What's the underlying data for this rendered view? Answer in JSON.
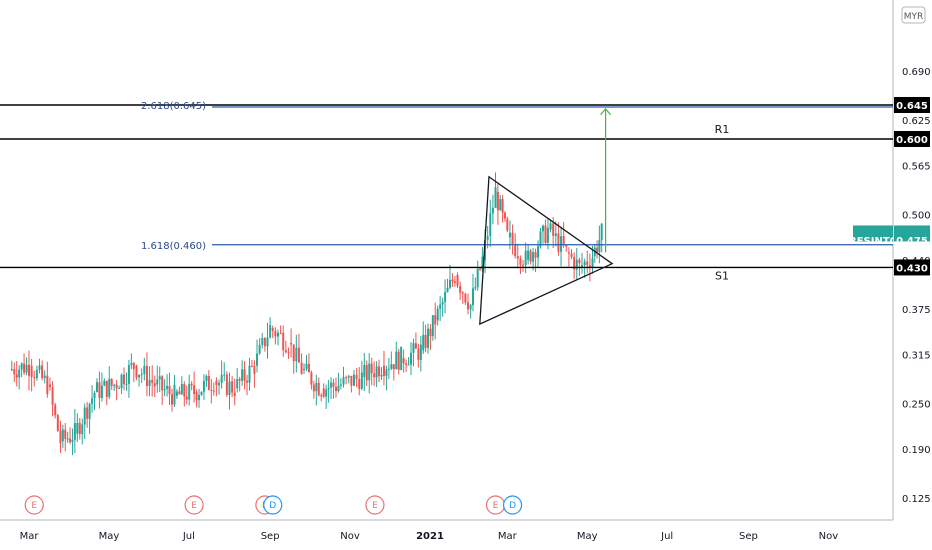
{
  "currency_label": "MYR",
  "symbol_label": "RESINTC",
  "price_tag": "0.475",
  "colors": {
    "up": "#26a69a",
    "down": "#ef5350",
    "fib_line": "#2a5caa",
    "sr_line": "#000000",
    "arrow": "#4caf50",
    "earnings": "#e57373",
    "dividend": "#2196f3",
    "symbol_tag": "#26a69a"
  },
  "chart_data": {
    "type": "candlestick",
    "y_axis": {
      "ticks": [
        "0.690",
        "0.625",
        "0.565",
        "0.500",
        "0.440",
        "0.375",
        "0.315",
        "0.250",
        "0.190",
        "0.125"
      ]
    },
    "x_axis": {
      "ticks": [
        "Mar",
        "May",
        "Jul",
        "Sep",
        "Nov",
        "2021",
        "Mar",
        "May",
        "Jul",
        "Sep",
        "Nov"
      ],
      "bold": [
        "2021"
      ]
    },
    "levels": [
      {
        "price": 0.645,
        "label": "0.645",
        "kind": "fib",
        "text": "2.618(0.645)"
      },
      {
        "price": 0.6,
        "label": "0.600",
        "kind": "resistance",
        "text": "R1"
      },
      {
        "price": 0.46,
        "kind": "fib",
        "text": "1.618(0.460)"
      },
      {
        "price": 0.43,
        "label": "0.430",
        "kind": "support",
        "text": "S1"
      }
    ],
    "events": [
      {
        "type": "E",
        "date": "2020-03-05"
      },
      {
        "type": "E",
        "date": "2020-07-05"
      },
      {
        "type": "E",
        "date": "2020-08-28"
      },
      {
        "type": "D",
        "date": "2020-09-03"
      },
      {
        "type": "E",
        "date": "2020-11-20"
      },
      {
        "type": "E",
        "date": "2021-02-20"
      },
      {
        "type": "D",
        "date": "2021-03-05"
      }
    ],
    "triangle_pattern": {
      "vertices": [
        {
          "date": "2021-02-15",
          "price": 0.55
        },
        {
          "date": "2021-02-08",
          "price": 0.355
        },
        {
          "date": "2021-05-20",
          "price": 0.435
        }
      ]
    },
    "target_arrow": {
      "date": "2021-05-15",
      "from": 0.45,
      "to": 0.64
    },
    "price_series": [
      {
        "date": "2020-02-15",
        "price": 0.295
      },
      {
        "date": "2020-03-01",
        "price": 0.3
      },
      {
        "date": "2020-03-15",
        "price": 0.275
      },
      {
        "date": "2020-03-25",
        "price": 0.2
      },
      {
        "date": "2020-04-05",
        "price": 0.21
      },
      {
        "date": "2020-04-20",
        "price": 0.265
      },
      {
        "date": "2020-05-05",
        "price": 0.275
      },
      {
        "date": "2020-05-20",
        "price": 0.3
      },
      {
        "date": "2020-06-05",
        "price": 0.275
      },
      {
        "date": "2020-06-20",
        "price": 0.26
      },
      {
        "date": "2020-07-05",
        "price": 0.265
      },
      {
        "date": "2020-07-20",
        "price": 0.28
      },
      {
        "date": "2020-08-05",
        "price": 0.27
      },
      {
        "date": "2020-08-20",
        "price": 0.3
      },
      {
        "date": "2020-09-01",
        "price": 0.35
      },
      {
        "date": "2020-09-15",
        "price": 0.33
      },
      {
        "date": "2020-09-25",
        "price": 0.295
      },
      {
        "date": "2020-10-10",
        "price": 0.27
      },
      {
        "date": "2020-10-25",
        "price": 0.275
      },
      {
        "date": "2020-11-10",
        "price": 0.285
      },
      {
        "date": "2020-11-25",
        "price": 0.3
      },
      {
        "date": "2020-12-10",
        "price": 0.31
      },
      {
        "date": "2020-12-25",
        "price": 0.32
      },
      {
        "date": "2021-01-05",
        "price": 0.36
      },
      {
        "date": "2021-01-20",
        "price": 0.42
      },
      {
        "date": "2021-02-01",
        "price": 0.38
      },
      {
        "date": "2021-02-10",
        "price": 0.44
      },
      {
        "date": "2021-02-20",
        "price": 0.53
      },
      {
        "date": "2021-03-01",
        "price": 0.47
      },
      {
        "date": "2021-03-15",
        "price": 0.44
      },
      {
        "date": "2021-04-01",
        "price": 0.48
      },
      {
        "date": "2021-04-15",
        "price": 0.45
      },
      {
        "date": "2021-04-25",
        "price": 0.43
      },
      {
        "date": "2021-05-05",
        "price": 0.445
      },
      {
        "date": "2021-05-12",
        "price": 0.475
      }
    ]
  }
}
